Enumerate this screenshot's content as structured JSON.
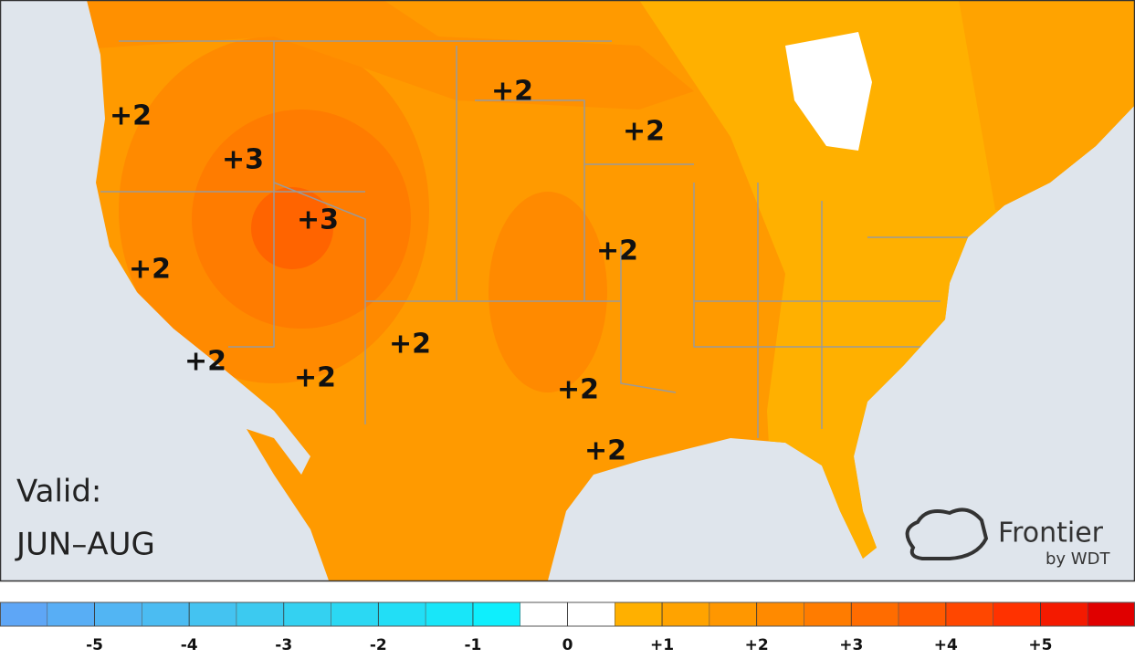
{
  "map": {
    "labels": [
      "+2",
      "+3",
      "+3",
      "+2",
      "+2",
      "+2",
      "+2",
      "+2",
      "+2",
      "+2",
      "+2",
      "+2"
    ],
    "valid_label": "Valid:",
    "valid_period": "JUN–AUG",
    "brand": "Frontier",
    "brand_sub": "by WDT"
  },
  "legend": {
    "ticks": [
      -5,
      -4,
      -3,
      -2,
      -1,
      0,
      {
        "value": 1,
        "label": "+1"
      },
      {
        "value": 2,
        "label": "+2"
      },
      {
        "value": 3,
        "label": "+3"
      },
      {
        "value": 4,
        "label": "+4"
      },
      {
        "value": 5,
        "label": "+5"
      }
    ],
    "colors": [
      "#5ea6f6",
      "#58aef5",
      "#52b5f3",
      "#4bbcf2",
      "#44c3f1",
      "#3ccaf0",
      "#34d1f1",
      "#2bd8f3",
      "#22def6",
      "#18e6f9",
      "#0eeffd",
      "#ffffff",
      "#ffffff",
      "#ffb000",
      "#ffa300",
      "#ff9700",
      "#ff8a00",
      "#ff7c00",
      "#ff6c00",
      "#ff5a00",
      "#ff4700",
      "#ff3200",
      "#f41a00",
      "#e00000"
    ]
  }
}
